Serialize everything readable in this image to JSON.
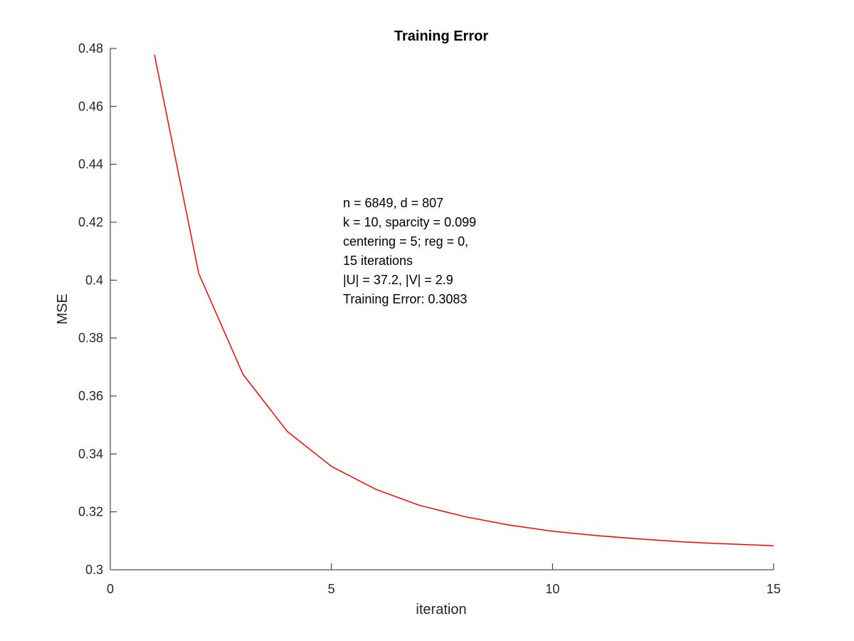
{
  "chart_data": {
    "type": "line",
    "title": "Training Error",
    "xlabel": "iteration",
    "ylabel": "MSE",
    "xlim": [
      0,
      15
    ],
    "ylim": [
      0.3,
      0.48
    ],
    "xticks": [
      0,
      5,
      10,
      15
    ],
    "xtick_labels": [
      "0",
      "5",
      "10",
      "15"
    ],
    "yticks": [
      0.3,
      0.32,
      0.34,
      0.36,
      0.38,
      0.4,
      0.42,
      0.44,
      0.46,
      0.48
    ],
    "ytick_labels": [
      "0.3",
      "0.32",
      "0.34",
      "0.36",
      "0.38",
      "0.4",
      "0.42",
      "0.44",
      "0.46",
      "0.48"
    ],
    "grid": false,
    "series": [
      {
        "color": "#ff0000",
        "x": [
          1,
          2,
          3,
          4,
          5,
          6,
          7,
          8,
          9,
          10,
          11,
          12,
          13,
          14,
          15
        ],
        "y": [
          0.4778,
          0.4023,
          0.3675,
          0.3478,
          0.3357,
          0.3278,
          0.3222,
          0.3184,
          0.3155,
          0.3133,
          0.3118,
          0.3106,
          0.3096,
          0.3089,
          0.3083
        ]
      }
    ],
    "annotation": [
      "n = 6849, d = 807",
      "k = 10, sparcity = 0.099",
      "centering = 5; reg = 0,",
      "15 iterations",
      "|U| = 37.2, |V| = 2.9",
      "Training Error: 0.3083"
    ]
  }
}
